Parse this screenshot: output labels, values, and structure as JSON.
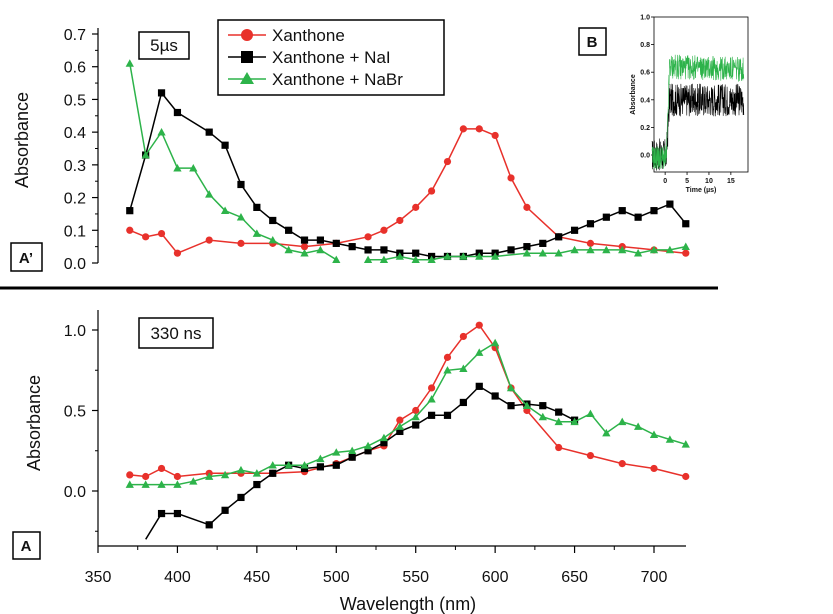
{
  "figure": {
    "x_axis_title": "Wavelength (nm)",
    "y_axis_title": "Absorbance",
    "separator_color": "#000000"
  },
  "series_styles": [
    {
      "name": "Xanthone",
      "color": "#e8312b",
      "marker": "circle"
    },
    {
      "name": "Xanthone + NaI",
      "color": "#000000",
      "marker": "square"
    },
    {
      "name": "Xanthone + NaBr",
      "color": "#2db34a",
      "marker": "triangle"
    }
  ],
  "chart_data": [
    {
      "type": "line",
      "panel_tag": "A’",
      "time_label": "5µs",
      "xlabel": "",
      "ylabel": "Absorbance",
      "xlim": [
        350,
        720
      ],
      "ylim": [
        0,
        0.7
      ],
      "yticks": [
        0.0,
        0.1,
        0.2,
        0.3,
        0.4,
        0.5,
        0.6,
        0.7
      ],
      "ytick_labels": [
        "0.0",
        "0.1",
        "0.2",
        "0.3",
        "0.4",
        "0.5",
        "0.6",
        "0.7"
      ],
      "legend": {
        "placement": "top-center",
        "entries": [
          "Xanthone",
          "Xanthone + NaI",
          "Xanthone + NaBr"
        ]
      },
      "series": [
        {
          "name": "Xanthone",
          "x": [
            370,
            380,
            390,
            400,
            420,
            440,
            460,
            480,
            500,
            520,
            530,
            540,
            550,
            560,
            570,
            580,
            590,
            600,
            610,
            620,
            640,
            660,
            680,
            700,
            720
          ],
          "y": [
            0.1,
            0.08,
            0.09,
            0.03,
            0.07,
            0.06,
            0.06,
            0.05,
            0.06,
            0.08,
            0.1,
            0.13,
            0.17,
            0.22,
            0.31,
            0.41,
            0.41,
            0.39,
            0.26,
            0.17,
            0.08,
            0.06,
            0.05,
            0.04,
            0.03
          ],
          "segments": [
            [
              0,
              25
            ]
          ]
        },
        {
          "name": "Xanthone + NaI",
          "x": [
            370,
            380,
            390,
            400,
            420,
            430,
            440,
            450,
            460,
            470,
            480,
            490,
            500,
            510,
            520,
            530,
            540,
            550,
            560,
            570,
            580,
            590,
            600,
            610,
            620,
            630,
            640,
            650,
            660,
            670,
            680,
            690,
            700,
            710,
            720
          ],
          "y": [
            0.16,
            0.33,
            0.52,
            0.46,
            0.4,
            0.36,
            0.24,
            0.17,
            0.13,
            0.1,
            0.07,
            0.07,
            0.06,
            0.05,
            0.04,
            0.04,
            0.03,
            0.03,
            0.02,
            0.02,
            0.02,
            0.03,
            0.03,
            0.04,
            0.05,
            0.06,
            0.08,
            0.1,
            0.12,
            0.14,
            0.16,
            0.14,
            0.16,
            0.18,
            0.12
          ],
          "segments": [
            [
              0,
              35
            ]
          ]
        },
        {
          "name": "Xanthone + NaBr",
          "x": [
            370,
            380,
            390,
            400,
            410,
            420,
            430,
            440,
            450,
            460,
            470,
            480,
            490,
            500,
            520,
            530,
            540,
            550,
            560,
            570,
            580,
            590,
            600,
            620,
            630,
            640,
            650,
            660,
            670,
            680,
            690,
            700,
            710,
            720
          ],
          "y": [
            0.61,
            0.33,
            0.4,
            0.29,
            0.29,
            0.21,
            0.16,
            0.14,
            0.09,
            0.07,
            0.04,
            0.03,
            0.04,
            0.01,
            0.01,
            0.01,
            0.02,
            0.01,
            0.01,
            0.02,
            0.02,
            0.02,
            0.02,
            0.03,
            0.03,
            0.03,
            0.04,
            0.04,
            0.04,
            0.04,
            0.03,
            0.04,
            0.04,
            0.05
          ],
          "segments": [
            [
              0,
              14
            ],
            [
              14,
              34
            ]
          ]
        }
      ]
    },
    {
      "type": "line",
      "panel_tag": "A",
      "time_label": "330 ns",
      "xlabel": "Wavelength (nm)",
      "ylabel": "Absorbance",
      "xlim": [
        350,
        720
      ],
      "ylim": [
        -0.3,
        1.1
      ],
      "xticks": [
        350,
        400,
        450,
        500,
        550,
        600,
        650,
        700
      ],
      "xtick_labels": [
        "350",
        "400",
        "450",
        "500",
        "550",
        "600",
        "650",
        "700"
      ],
      "yticks": [
        0.0,
        0.5,
        1.0
      ],
      "ytick_labels": [
        "0.0",
        "0.5",
        "1.0"
      ],
      "series": [
        {
          "name": "Xanthone",
          "x": [
            370,
            380,
            390,
            400,
            420,
            440,
            460,
            480,
            500,
            510,
            520,
            530,
            540,
            550,
            560,
            570,
            580,
            590,
            600,
            610,
            620,
            640,
            660,
            680,
            700,
            720
          ],
          "y": [
            0.1,
            0.09,
            0.14,
            0.09,
            0.11,
            0.11,
            0.11,
            0.12,
            0.17,
            0.21,
            0.25,
            0.28,
            0.44,
            0.5,
            0.64,
            0.83,
            0.96,
            1.03,
            0.89,
            0.64,
            0.5,
            0.27,
            0.22,
            0.17,
            0.14,
            0.09
          ],
          "segments": [
            [
              0,
              26
            ]
          ]
        },
        {
          "name": "Xanthone + NaI",
          "x": [
            380,
            390,
            400,
            420,
            430,
            440,
            450,
            460,
            470,
            480,
            490,
            500,
            510,
            520,
            530,
            540,
            550,
            560,
            570,
            580,
            590,
            600,
            610,
            620,
            630,
            640,
            650
          ],
          "y": [
            -0.3,
            -0.14,
            -0.14,
            -0.21,
            -0.12,
            -0.04,
            0.04,
            0.11,
            0.16,
            0.14,
            0.15,
            0.16,
            0.21,
            0.25,
            0.3,
            0.37,
            0.41,
            0.47,
            0.47,
            0.55,
            0.65,
            0.59,
            0.53,
            0.54,
            0.53,
            0.49,
            0.44
          ],
          "segments": [
            [
              0,
              27
            ]
          ]
        },
        {
          "name": "Xanthone + NaBr",
          "x": [
            370,
            380,
            390,
            400,
            410,
            420,
            430,
            440,
            450,
            460,
            470,
            480,
            490,
            500,
            510,
            520,
            530,
            540,
            550,
            560,
            570,
            580,
            590,
            600,
            610,
            620,
            630,
            640,
            650,
            660,
            670,
            680,
            690,
            700,
            710,
            720
          ],
          "y": [
            0.04,
            0.04,
            0.04,
            0.04,
            0.06,
            0.09,
            0.1,
            0.13,
            0.11,
            0.16,
            0.16,
            0.16,
            0.2,
            0.24,
            0.25,
            0.28,
            0.33,
            0.4,
            0.46,
            0.57,
            0.75,
            0.76,
            0.86,
            0.92,
            0.64,
            0.53,
            0.46,
            0.43,
            0.43,
            0.48,
            0.36,
            0.43,
            0.4,
            0.35,
            0.32,
            0.29
          ],
          "segments": [
            [
              0,
              36
            ]
          ]
        }
      ]
    },
    {
      "type": "line",
      "panel_tag": "B",
      "xlabel": "Time (µs)",
      "ylabel": "Absorbance",
      "xlim": [
        -3,
        19
      ],
      "ylim": [
        -0.2,
        1.0
      ],
      "xticks": [
        0,
        5,
        10,
        15
      ],
      "xtick_labels": [
        "0",
        "5",
        "10",
        "15"
      ],
      "yticks": [
        0.0,
        0.2,
        0.4,
        0.6,
        0.8,
        1.0
      ],
      "ytick_labels": [
        "0.0",
        "0.2",
        "0.4",
        "0.6",
        "0.8",
        "1.0"
      ],
      "series": [
        {
          "name": "Xanthone + NaI",
          "x": [
            -3,
            0.3,
            1,
            18
          ],
          "y": [
            0.0,
            0.0,
            0.4,
            0.4
          ]
        },
        {
          "name": "Xanthone + NaBr",
          "x": [
            -3,
            0.3,
            1,
            18
          ],
          "y": [
            -0.02,
            -0.02,
            0.64,
            0.62
          ]
        }
      ]
    }
  ]
}
